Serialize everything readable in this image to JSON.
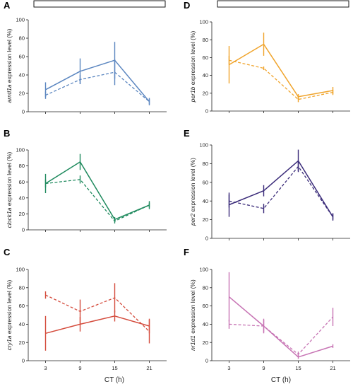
{
  "figure": {
    "xlabel": "CT (h)"
  },
  "chart_data": [
    {
      "type": "line",
      "panel_letter": "A",
      "gene": "arntl1a",
      "ylabel_suffix": " expression level (%)",
      "x": [
        3,
        9,
        15,
        21
      ],
      "xlim": [
        0,
        24
      ],
      "ylim": [
        0,
        100
      ],
      "yticks": [
        0,
        20,
        40,
        60,
        80,
        100
      ],
      "xticks": [
        3,
        9,
        15,
        21
      ],
      "color": "#5b86c0",
      "light_bar": true,
      "series": [
        {
          "style": "solid",
          "values": [
            24,
            44,
            56,
            11
          ],
          "err": [
            8,
            14,
            20,
            4
          ]
        },
        {
          "style": "dashed",
          "values": [
            18,
            35,
            43,
            11
          ],
          "err": [
            4,
            5,
            14,
            3
          ]
        }
      ]
    },
    {
      "type": "line",
      "panel_letter": "B",
      "gene": "clock1a",
      "ylabel_suffix": " expression level (%)",
      "x": [
        3,
        9,
        15,
        21
      ],
      "xlim": [
        0,
        24
      ],
      "ylim": [
        0,
        100
      ],
      "yticks": [
        0,
        20,
        40,
        60,
        80,
        100
      ],
      "xticks": [
        3,
        9,
        15,
        21
      ],
      "color": "#1f8a5e",
      "light_bar": false,
      "series": [
        {
          "style": "solid",
          "values": [
            58,
            85,
            13,
            31
          ],
          "err": [
            12,
            10,
            3,
            5
          ]
        },
        {
          "style": "dashed",
          "values": [
            58,
            63,
            11,
            31
          ],
          "err": [
            5,
            5,
            3,
            3
          ]
        }
      ]
    },
    {
      "type": "line",
      "panel_letter": "C",
      "gene": "cry1a",
      "ylabel_suffix": " expression level (%)",
      "x": [
        3,
        9,
        15,
        21
      ],
      "xlim": [
        0,
        24
      ],
      "ylim": [
        0,
        100
      ],
      "yticks": [
        0,
        20,
        40,
        60,
        80,
        100
      ],
      "xticks": [
        3,
        9,
        15,
        21
      ],
      "color": "#d44b3c",
      "light_bar": false,
      "series": [
        {
          "style": "solid",
          "values": [
            30,
            40,
            49,
            38
          ],
          "err": [
            19,
            8,
            6,
            8
          ]
        },
        {
          "style": "dashed",
          "values": [
            72,
            54,
            69,
            32
          ],
          "err": [
            4,
            13,
            16,
            13
          ]
        }
      ]
    },
    {
      "type": "line",
      "panel_letter": "D",
      "gene": "per1b",
      "ylabel_suffix": " expression level (%)",
      "x": [
        3,
        9,
        15,
        21
      ],
      "xlim": [
        0,
        24
      ],
      "ylim": [
        0,
        100
      ],
      "yticks": [
        0,
        20,
        40,
        60,
        80,
        100
      ],
      "xticks": [
        3,
        9,
        15,
        21
      ],
      "color": "#f0a42c",
      "light_bar": true,
      "series": [
        {
          "style": "solid",
          "values": [
            52,
            75,
            16,
            23
          ],
          "err": [
            21,
            13,
            3,
            4
          ]
        },
        {
          "style": "dashed",
          "values": [
            57,
            48,
            13,
            21
          ],
          "err": [
            5,
            2,
            3,
            3
          ]
        }
      ]
    },
    {
      "type": "line",
      "panel_letter": "E",
      "gene": "per2",
      "ylabel_suffix": " expression level (%)",
      "x": [
        3,
        9,
        15,
        21
      ],
      "xlim": [
        0,
        24
      ],
      "ylim": [
        0,
        100
      ],
      "yticks": [
        0,
        20,
        40,
        60,
        80,
        100
      ],
      "xticks": [
        3,
        9,
        15,
        21
      ],
      "color": "#3b2c7a",
      "light_bar": false,
      "series": [
        {
          "style": "solid",
          "values": [
            36,
            51,
            83,
            23
          ],
          "err": [
            13,
            6,
            12,
            4
          ]
        },
        {
          "style": "dashed",
          "values": [
            40,
            32,
            77,
            23
          ],
          "err": [
            7,
            5,
            5,
            3
          ]
        }
      ]
    },
    {
      "type": "line",
      "panel_letter": "F",
      "gene": "nr1d1",
      "ylabel_suffix": " expression level (%)",
      "x": [
        3,
        9,
        15,
        21
      ],
      "xlim": [
        0,
        24
      ],
      "ylim": [
        0,
        100
      ],
      "yticks": [
        0,
        20,
        40,
        60,
        80,
        100
      ],
      "xticks": [
        3,
        9,
        15,
        21
      ],
      "color": "#c774b4",
      "light_bar": false,
      "series": [
        {
          "style": "solid",
          "values": [
            70,
            38,
            4,
            16
          ],
          "err": [
            27,
            8,
            2,
            2
          ]
        },
        {
          "style": "dashed",
          "values": [
            40,
            38,
            7,
            48
          ],
          "err": [
            5,
            7,
            3,
            10
          ]
        }
      ]
    }
  ]
}
